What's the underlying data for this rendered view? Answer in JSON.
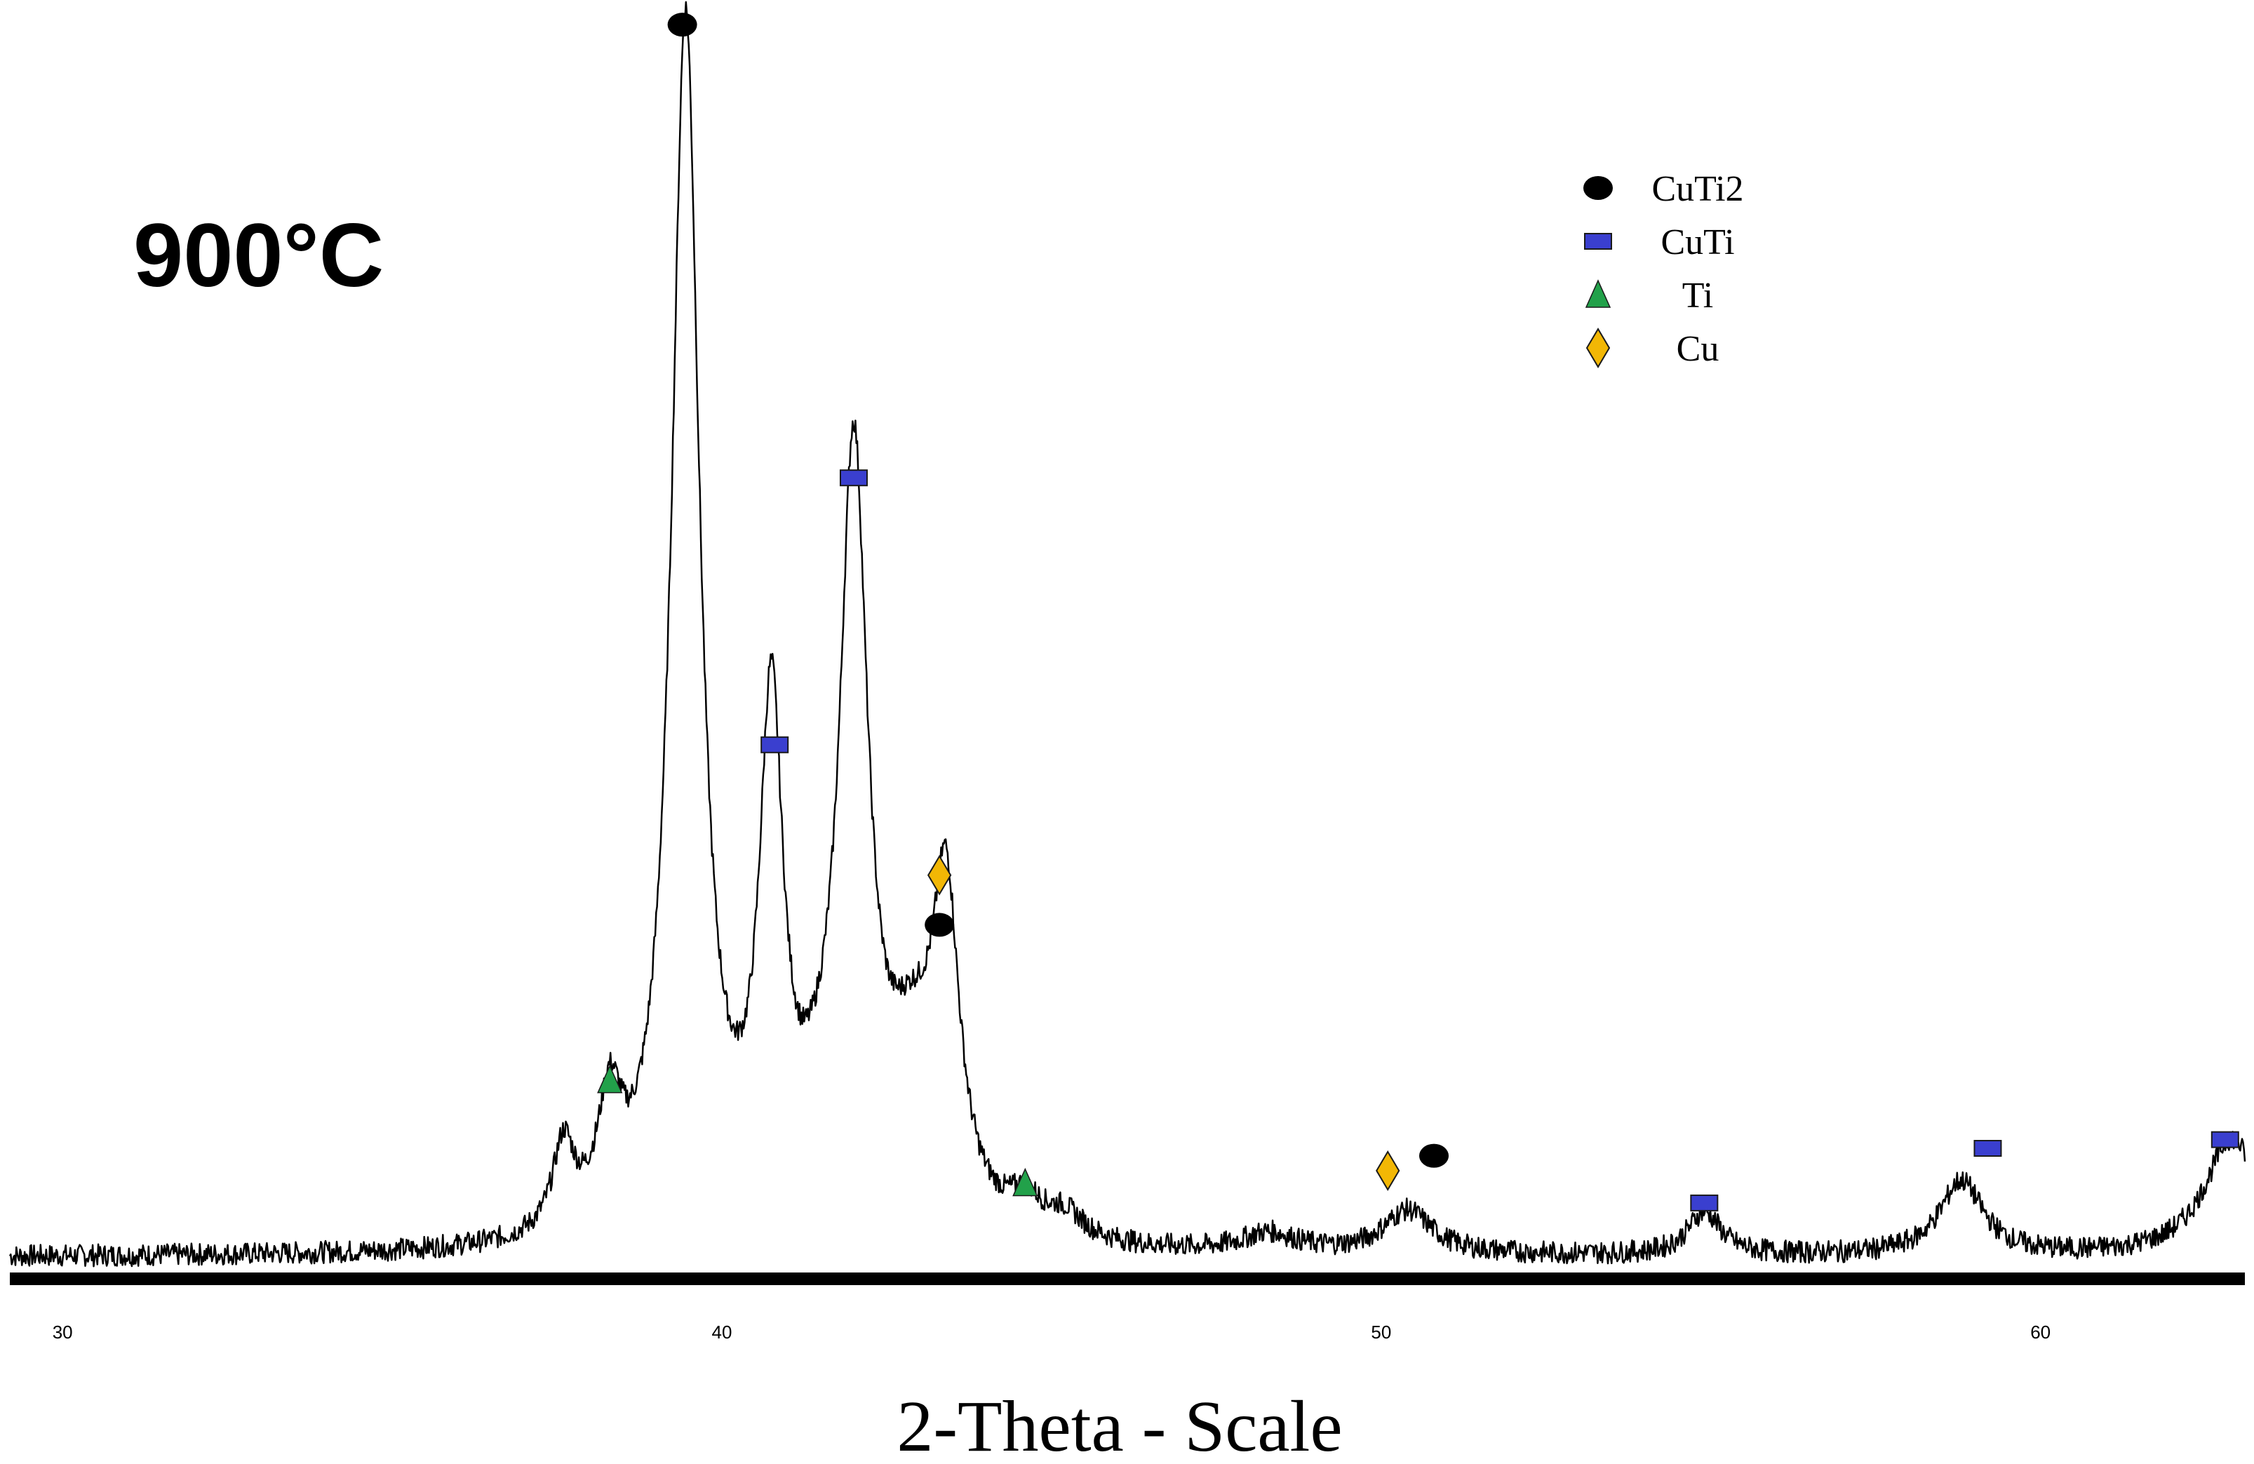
{
  "chart_data": {
    "type": "line",
    "annotation": "900°C",
    "xlabel": "2-Theta - Scale",
    "ylabel": "",
    "xlim": [
      29.2,
      63.1
    ],
    "ylim": [
      0,
      100
    ],
    "x_ticks": [
      {
        "value": 30,
        "label": "30"
      },
      {
        "value": 40,
        "label": "40"
      },
      {
        "value": 50,
        "label": "50"
      },
      {
        "value": 60,
        "label": "60"
      }
    ],
    "legend": {
      "placement": "top-right",
      "entries": [
        {
          "name": "CuTi2",
          "marker": "circle",
          "color": "#000000"
        },
        {
          "name": "CuTi",
          "marker": "rectangle",
          "color": "#3a3fcf"
        },
        {
          "name": "Ti",
          "marker": "triangle",
          "color": "#22a14a"
        },
        {
          "name": "Cu",
          "marker": "diamond",
          "color": "#f2b705"
        }
      ]
    },
    "series": [
      {
        "baseline": 1.2,
        "noise": 0.9,
        "peaks": [
          {
            "pos": 37.6,
            "h": 7.0,
            "w": 0.2
          },
          {
            "pos": 38.3,
            "h": 9.5,
            "w": 0.22
          },
          {
            "pos": 39.45,
            "h": 98.0,
            "w": 0.26
          },
          {
            "pos": 40.75,
            "h": 40.0,
            "w": 0.22
          },
          {
            "pos": 41.5,
            "h": 4.0,
            "w": 0.4
          },
          {
            "pos": 42.0,
            "h": 60.0,
            "w": 0.26
          },
          {
            "pos": 42.9,
            "h": 12.0,
            "w": 0.5
          },
          {
            "pos": 43.4,
            "h": 24.0,
            "w": 0.24
          },
          {
            "pos": 44.6,
            "h": 2.5,
            "w": 0.3
          },
          {
            "pos": 45.2,
            "h": 2.0,
            "w": 0.35
          },
          {
            "pos": 48.3,
            "h": 1.5,
            "w": 0.5
          },
          {
            "pos": 50.4,
            "h": 3.5,
            "w": 0.45
          },
          {
            "pos": 54.9,
            "h": 3.5,
            "w": 0.3
          },
          {
            "pos": 58.8,
            "h": 6.0,
            "w": 0.4
          },
          {
            "pos": 62.9,
            "h": 9.5,
            "w": 0.5
          }
        ]
      }
    ],
    "phase_markers": [
      {
        "phase": "CuTi2",
        "x": 39.4,
        "y": 100.5
      },
      {
        "phase": "CuTi",
        "x": 40.8,
        "y": 42.5
      },
      {
        "phase": "CuTi",
        "x": 42.0,
        "y": 64.0
      },
      {
        "phase": "Cu",
        "x": 43.3,
        "y": 32.0
      },
      {
        "phase": "CuTi2",
        "x": 43.3,
        "y": 28.0
      },
      {
        "phase": "Ti",
        "x": 38.3,
        "y": 15.5
      },
      {
        "phase": "Ti",
        "x": 44.6,
        "y": 7.2
      },
      {
        "phase": "Cu",
        "x": 50.1,
        "y": 8.2
      },
      {
        "phase": "CuTi2",
        "x": 50.8,
        "y": 9.4
      },
      {
        "phase": "CuTi",
        "x": 54.9,
        "y": 5.6
      },
      {
        "phase": "CuTi",
        "x": 59.2,
        "y": 10.0
      },
      {
        "phase": "CuTi",
        "x": 62.8,
        "y": 10.7
      }
    ]
  }
}
